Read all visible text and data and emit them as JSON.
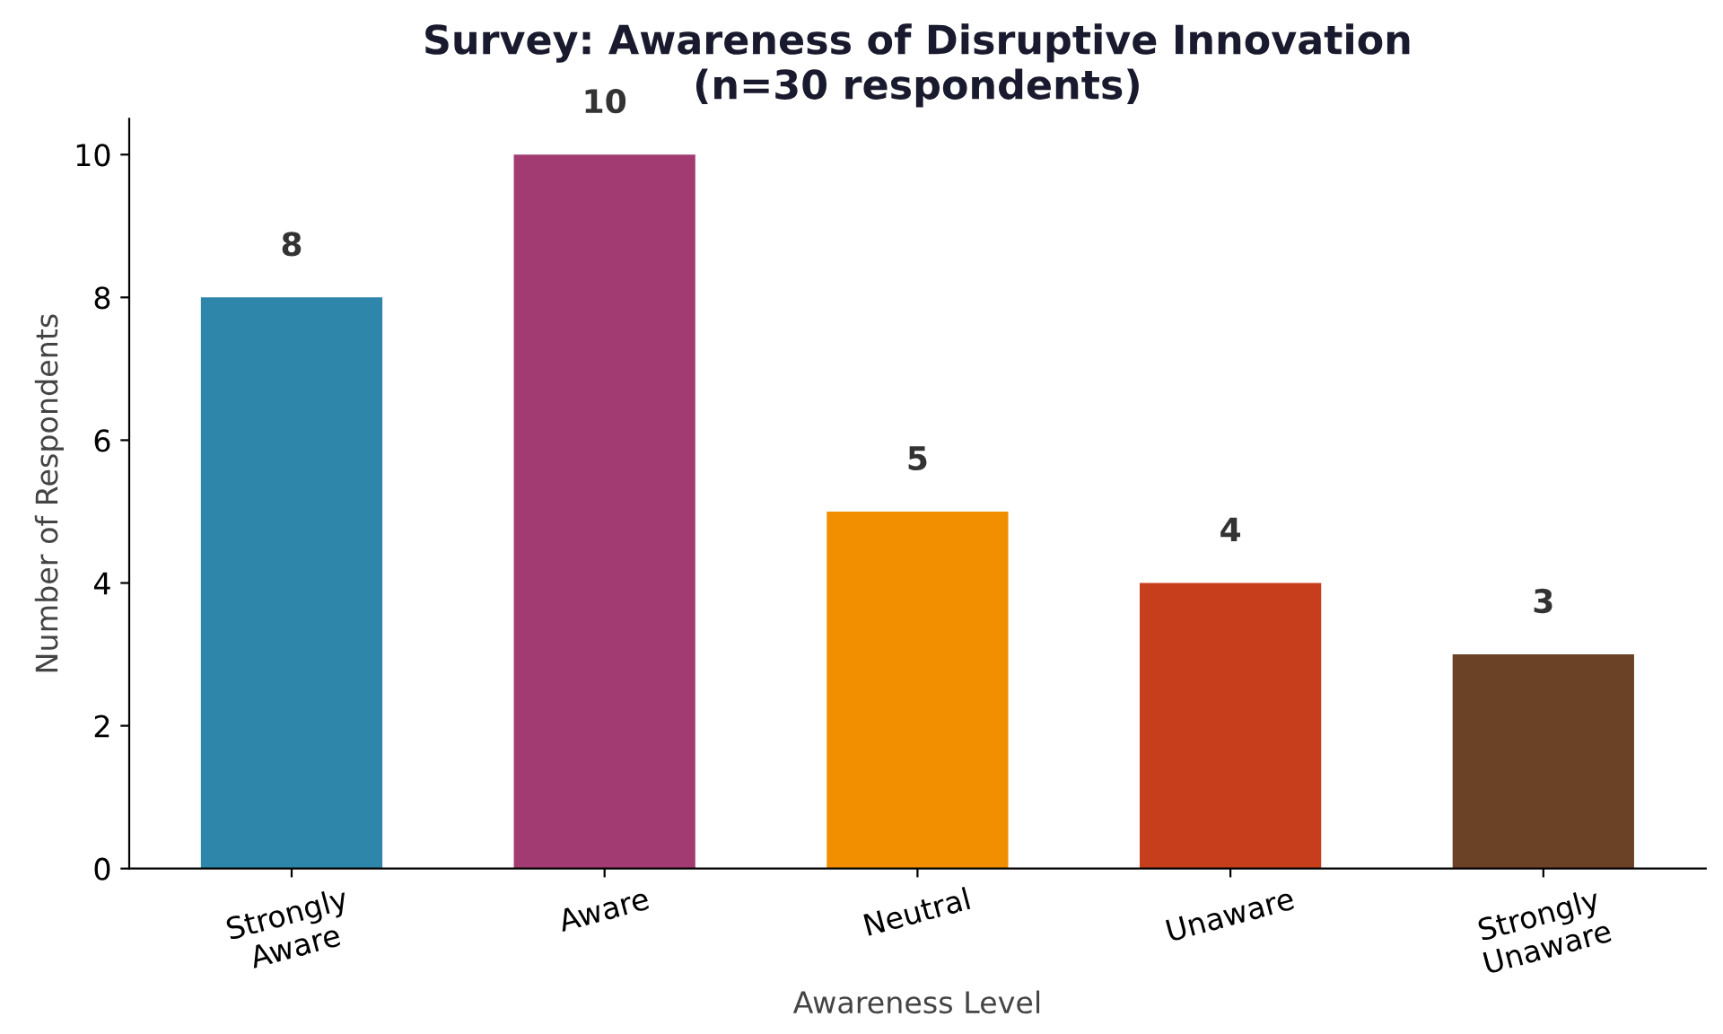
{
  "chart_data": {
    "type": "bar",
    "title": "Survey: Awareness of Disruptive Innovation\n(n=30 respondents)",
    "xlabel": "Awareness Level",
    "ylabel": "Number of Respondents",
    "categories": [
      "Strongly\nAware",
      "Aware",
      "Neutral",
      "Unaware",
      "Strongly\nUnaware"
    ],
    "values": [
      8,
      10,
      5,
      4,
      3
    ],
    "colors": [
      "#2e86ab",
      "#a23b72",
      "#f18f01",
      "#c73e1d",
      "#6b4226"
    ],
    "ylim": [
      0,
      10.5
    ],
    "yticks": [
      0,
      2,
      4,
      6,
      8,
      10
    ],
    "grid": false,
    "legend": false,
    "data_labels": true
  }
}
